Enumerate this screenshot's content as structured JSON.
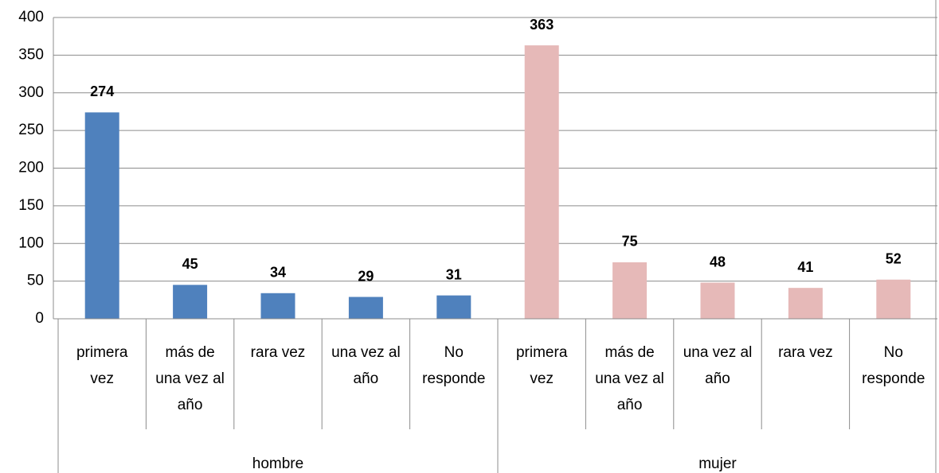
{
  "chart_data": {
    "type": "bar",
    "groups": [
      {
        "name": "hombre",
        "color": "#4f81bd",
        "categories": [
          "primera vez",
          "más de una vez al año",
          "rara vez",
          "una vez al año",
          "No responde"
        ],
        "values": [
          274,
          45,
          34,
          29,
          31
        ]
      },
      {
        "name": "mujer",
        "color": "#e6b9b8",
        "categories": [
          "primera vez",
          "más de una vez al año",
          "una vez al año",
          "rara vez",
          "No responde"
        ],
        "values": [
          363,
          75,
          48,
          41,
          52
        ]
      }
    ],
    "ylim": [
      0,
      400
    ],
    "yticks": [
      0,
      50,
      100,
      150,
      200,
      250,
      300,
      350,
      400
    ],
    "grid": true
  }
}
